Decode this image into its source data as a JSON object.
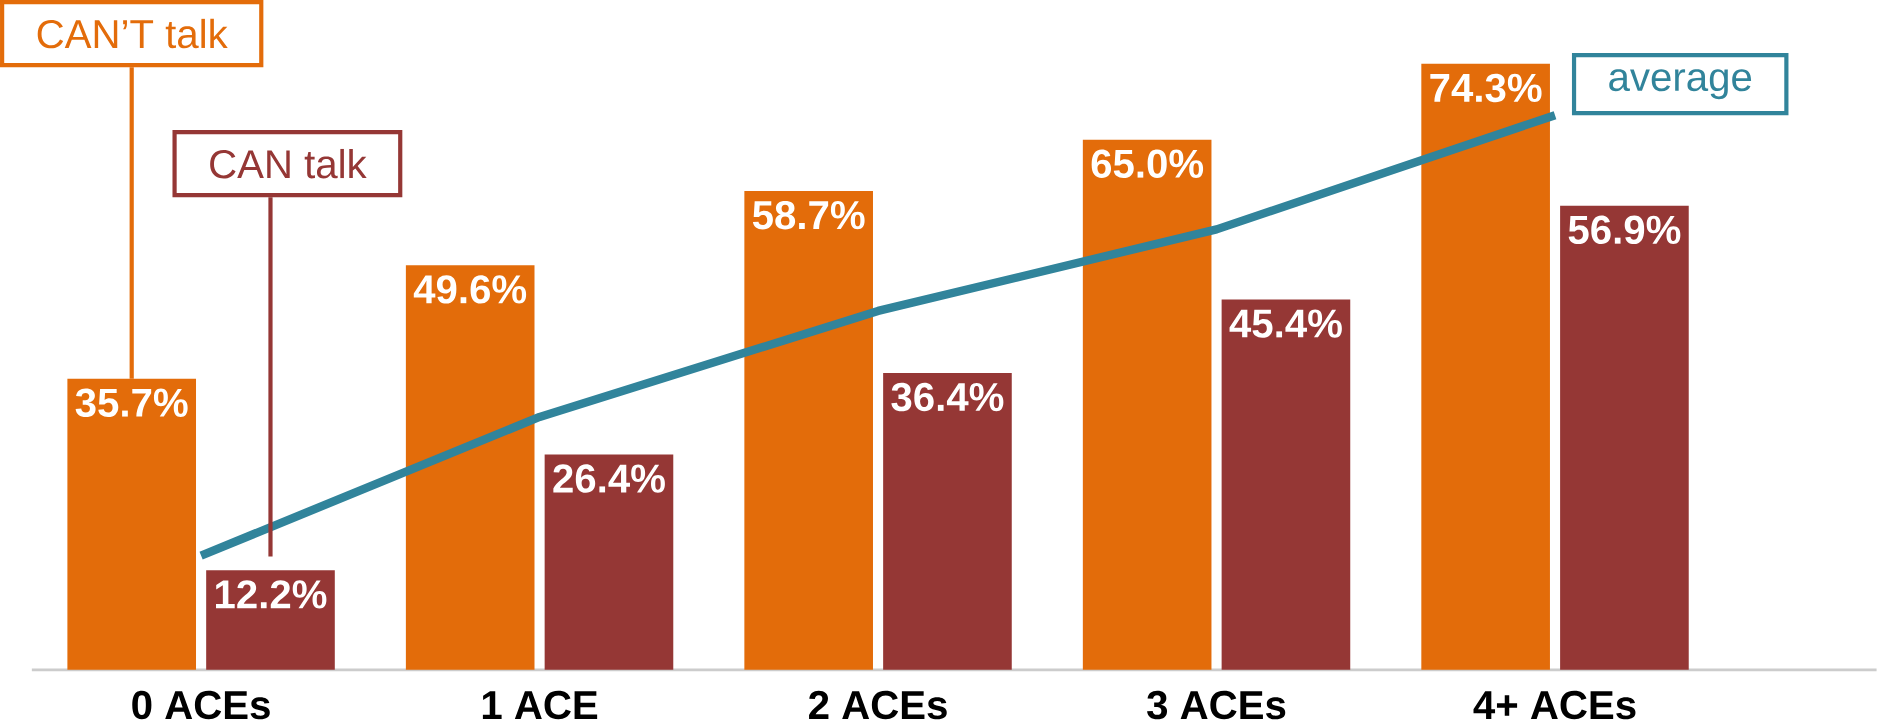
{
  "chart_data": {
    "type": "bar",
    "categories": [
      "0 ACEs",
      "1 ACE",
      "2 ACEs",
      "3 ACEs",
      "4+ ACEs"
    ],
    "series": [
      {
        "name": "CAN’T talk",
        "color": "#e36c0a",
        "values": [
          35.7,
          49.6,
          58.7,
          65.0,
          74.3
        ],
        "value_labels": [
          "35.7%",
          "49.6%",
          "58.7%",
          "65.0%",
          "74.3%"
        ]
      },
      {
        "name": "CAN talk",
        "color": "#953735",
        "values": [
          12.2,
          26.4,
          36.4,
          45.4,
          56.9
        ],
        "value_labels": [
          "12.2%",
          "26.4%",
          "36.4%",
          "45.4%",
          "56.9%"
        ]
      },
      {
        "name": "average",
        "type": "line",
        "color": "#31849b",
        "values": [
          14,
          31,
          44,
          54,
          68
        ]
      }
    ]
  }
}
